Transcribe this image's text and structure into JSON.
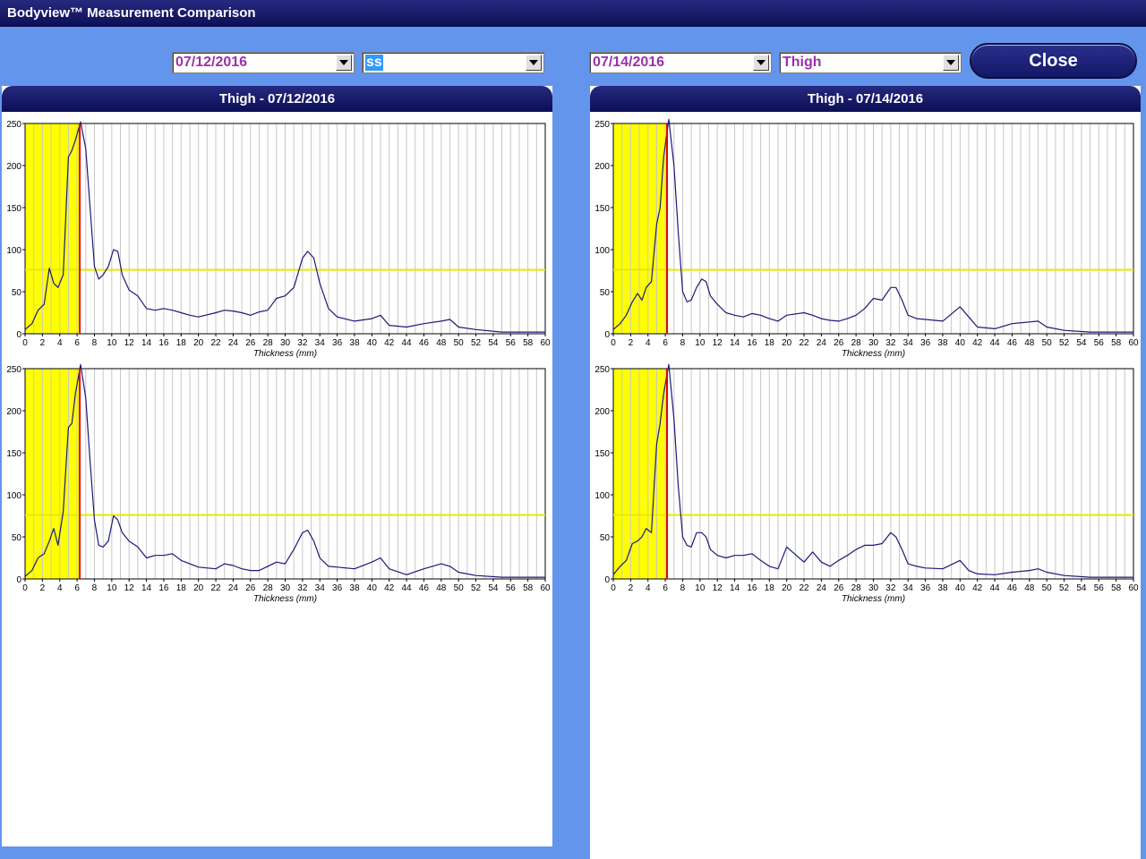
{
  "window": {
    "title": "Bodyview™ Measurement Comparison"
  },
  "left": {
    "date_value": "07/12/2016",
    "site_value": "ss",
    "panel_title": "Thigh - 07/12/2016"
  },
  "right": {
    "date_value": "07/14/2016",
    "site_value": "Thigh",
    "panel_title": "Thigh - 07/14/2016"
  },
  "close_label": "Close",
  "colors": {
    "curve": "#1a1a7a",
    "region": "#ffff00",
    "marker": "#e00000",
    "threshold": "#e8e800"
  },
  "chart_data": [
    {
      "type": "line",
      "panel": "left",
      "xlabel": "Thickness (mm)",
      "ylabel": "",
      "xlim": [
        0,
        60
      ],
      "ylim": [
        0,
        250
      ],
      "grid": true,
      "x_ticks": [
        0,
        2,
        4,
        6,
        8,
        10,
        12,
        14,
        16,
        18,
        20,
        22,
        24,
        26,
        28,
        30,
        32,
        34,
        36,
        38,
        40,
        42,
        44,
        46,
        48,
        50,
        52,
        54,
        56,
        58,
        60
      ],
      "y_ticks": [
        0,
        50,
        100,
        150,
        200,
        250
      ],
      "highlight_region": [
        0,
        6.3
      ],
      "marker_x": 6.3,
      "threshold_y": 76,
      "series": [
        {
          "x": [
            0,
            0.8,
            1.5,
            2.2,
            2.8,
            3.3,
            3.8,
            4.4,
            5,
            5.4,
            5.8,
            6.4,
            7,
            7.5,
            8,
            8.5,
            9,
            9.6,
            10.2,
            10.7,
            11.2,
            12,
            13,
            14,
            15,
            16,
            17,
            18,
            19,
            20,
            22,
            23,
            24,
            25,
            26,
            27,
            28,
            29,
            30,
            31,
            32,
            32.6,
            33.3,
            34,
            35,
            36,
            38,
            40,
            41,
            42,
            44,
            46,
            48,
            49,
            50,
            52,
            55,
            60
          ],
          "y": [
            5,
            12,
            28,
            35,
            78,
            60,
            55,
            70,
            210,
            218,
            230,
            252,
            220,
            150,
            80,
            65,
            70,
            80,
            100,
            98,
            70,
            52,
            45,
            30,
            28,
            30,
            28,
            25,
            22,
            20,
            25,
            28,
            27,
            25,
            22,
            26,
            28,
            42,
            45,
            55,
            90,
            98,
            90,
            60,
            30,
            20,
            15,
            18,
            22,
            10,
            8,
            12,
            15,
            17,
            8,
            5,
            2,
            2
          ]
        }
      ]
    },
    {
      "type": "line",
      "panel": "left",
      "xlabel": "Thickness (mm)",
      "ylabel": "",
      "xlim": [
        0,
        60
      ],
      "ylim": [
        0,
        250
      ],
      "grid": true,
      "x_ticks": [
        0,
        2,
        4,
        6,
        8,
        10,
        12,
        14,
        16,
        18,
        20,
        22,
        24,
        26,
        28,
        30,
        32,
        34,
        36,
        38,
        40,
        42,
        44,
        46,
        48,
        50,
        52,
        54,
        56,
        58,
        60
      ],
      "y_ticks": [
        0,
        50,
        100,
        150,
        200,
        250
      ],
      "highlight_region": [
        0,
        6.3
      ],
      "marker_x": 6.3,
      "threshold_y": 76,
      "series": [
        {
          "x": [
            0,
            0.8,
            1.5,
            2.2,
            2.8,
            3.3,
            3.8,
            4.4,
            5,
            5.4,
            5.8,
            6.4,
            7,
            7.5,
            8,
            8.5,
            9,
            9.6,
            10.2,
            10.7,
            11.2,
            12,
            13,
            14,
            15,
            16,
            17,
            18,
            19,
            20,
            22,
            23,
            24,
            25,
            26,
            27,
            28,
            29,
            30,
            31,
            32,
            32.6,
            33.3,
            34,
            35,
            36,
            38,
            40,
            41,
            42,
            44,
            46,
            48,
            49,
            50,
            52,
            55,
            60
          ],
          "y": [
            3,
            10,
            25,
            30,
            45,
            60,
            40,
            80,
            180,
            185,
            220,
            255,
            215,
            140,
            70,
            40,
            38,
            45,
            75,
            70,
            55,
            45,
            38,
            25,
            28,
            28,
            30,
            22,
            18,
            14,
            12,
            18,
            16,
            12,
            10,
            10,
            15,
            20,
            18,
            35,
            55,
            58,
            45,
            25,
            15,
            14,
            12,
            20,
            25,
            12,
            5,
            12,
            18,
            15,
            8,
            4,
            2,
            2
          ]
        }
      ]
    },
    {
      "type": "line",
      "panel": "right",
      "xlabel": "Thickness (mm)",
      "ylabel": "",
      "xlim": [
        0,
        60
      ],
      "ylim": [
        0,
        250
      ],
      "grid": true,
      "x_ticks": [
        0,
        2,
        4,
        6,
        8,
        10,
        12,
        14,
        16,
        18,
        20,
        22,
        24,
        26,
        28,
        30,
        32,
        34,
        36,
        38,
        40,
        42,
        44,
        46,
        48,
        50,
        52,
        54,
        56,
        58,
        60
      ],
      "y_ticks": [
        0,
        50,
        100,
        150,
        200,
        250
      ],
      "highlight_region": [
        0,
        6.2
      ],
      "marker_x": 6.2,
      "threshold_y": 76,
      "series": [
        {
          "x": [
            0,
            0.8,
            1.5,
            2.2,
            2.8,
            3.3,
            3.8,
            4.4,
            5,
            5.4,
            5.8,
            6.4,
            7,
            7.5,
            8,
            8.5,
            9,
            9.6,
            10.2,
            10.7,
            11.2,
            12,
            13,
            14,
            15,
            16,
            17,
            18,
            19,
            20,
            22,
            23,
            24,
            25,
            26,
            27,
            28,
            29,
            30,
            31,
            32,
            32.6,
            33.3,
            34,
            35,
            36,
            38,
            40,
            41,
            42,
            44,
            46,
            48,
            49,
            50,
            52,
            55,
            60
          ],
          "y": [
            5,
            12,
            22,
            38,
            48,
            40,
            55,
            62,
            130,
            150,
            210,
            255,
            200,
            120,
            50,
            38,
            40,
            55,
            65,
            62,
            45,
            35,
            25,
            22,
            20,
            24,
            22,
            18,
            15,
            22,
            25,
            22,
            18,
            16,
            15,
            18,
            22,
            30,
            42,
            40,
            55,
            55,
            40,
            22,
            18,
            17,
            15,
            32,
            20,
            8,
            6,
            12,
            14,
            15,
            8,
            4,
            2,
            2
          ]
        }
      ]
    },
    {
      "type": "line",
      "panel": "right",
      "xlabel": "Thickness (mm)",
      "ylabel": "",
      "xlim": [
        0,
        60
      ],
      "ylim": [
        0,
        250
      ],
      "grid": true,
      "x_ticks": [
        0,
        2,
        4,
        6,
        8,
        10,
        12,
        14,
        16,
        18,
        20,
        22,
        24,
        26,
        28,
        30,
        32,
        34,
        36,
        38,
        40,
        42,
        44,
        46,
        48,
        50,
        52,
        54,
        56,
        58,
        60
      ],
      "y_ticks": [
        0,
        50,
        100,
        150,
        200,
        250
      ],
      "highlight_region": [
        0,
        6.2
      ],
      "marker_x": 6.2,
      "threshold_y": 76,
      "series": [
        {
          "x": [
            0,
            0.8,
            1.5,
            2.2,
            2.8,
            3.3,
            3.8,
            4.4,
            5,
            5.4,
            5.8,
            6.4,
            7,
            7.5,
            8,
            8.5,
            9,
            9.6,
            10.2,
            10.7,
            11.2,
            12,
            13,
            14,
            15,
            16,
            17,
            18,
            19,
            20,
            22,
            23,
            24,
            25,
            26,
            27,
            28,
            29,
            30,
            31,
            32,
            32.6,
            33.3,
            34,
            35,
            36,
            38,
            40,
            41,
            42,
            44,
            46,
            48,
            49,
            50,
            52,
            55,
            60
          ],
          "y": [
            5,
            15,
            22,
            42,
            45,
            50,
            60,
            55,
            160,
            185,
            220,
            255,
            190,
            110,
            50,
            40,
            38,
            55,
            55,
            50,
            35,
            28,
            25,
            28,
            28,
            30,
            22,
            15,
            12,
            38,
            20,
            32,
            20,
            15,
            22,
            28,
            35,
            40,
            40,
            42,
            55,
            50,
            35,
            18,
            15,
            13,
            12,
            22,
            10,
            6,
            5,
            8,
            10,
            12,
            8,
            4,
            2,
            2
          ]
        }
      ]
    }
  ]
}
